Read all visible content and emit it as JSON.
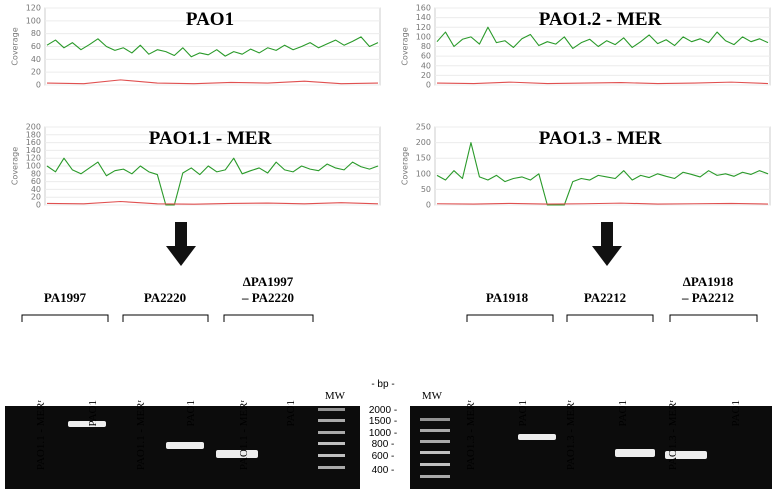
{
  "plots": [
    {
      "type": "line",
      "title": "PAO1",
      "ylabel": "Coverage",
      "ylim": [
        0,
        120
      ],
      "yticks": [
        0,
        20,
        40,
        60,
        80,
        100,
        120
      ],
      "grid": true,
      "series": [
        {
          "color": "#2a9a2a",
          "values": [
            62,
            70,
            58,
            66,
            55,
            63,
            72,
            60,
            54,
            58,
            50,
            62,
            48,
            55,
            52,
            46,
            58,
            44,
            50,
            47,
            55,
            45,
            52,
            48,
            56,
            50,
            58,
            54,
            62,
            55,
            60,
            66,
            58,
            64,
            70,
            62,
            68,
            75,
            60,
            66
          ]
        },
        {
          "color": "#e05050",
          "values": [
            3,
            2,
            8,
            3,
            2,
            4,
            3,
            6,
            2,
            3
          ]
        }
      ]
    },
    {
      "type": "line",
      "title": "PAO1.2 - MER",
      "ylabel": "Coverage",
      "ylim": [
        0,
        160
      ],
      "yticks": [
        0,
        20,
        40,
        60,
        80,
        100,
        120,
        140,
        160
      ],
      "grid": true,
      "series": [
        {
          "color": "#2a9a2a",
          "values": [
            90,
            110,
            80,
            95,
            100,
            85,
            120,
            88,
            92,
            78,
            96,
            105,
            82,
            90,
            85,
            100,
            76,
            88,
            95,
            80,
            92,
            84,
            98,
            78,
            90,
            104,
            86,
            94,
            82,
            100,
            90,
            96,
            88,
            110,
            92,
            84,
            100,
            90,
            96,
            88
          ]
        },
        {
          "color": "#e05050",
          "values": [
            4,
            3,
            6,
            3,
            4,
            5,
            3,
            4,
            6,
            3
          ]
        }
      ]
    },
    {
      "type": "line",
      "title": "PAO1.1 - MER",
      "ylabel": "Coverage",
      "ylim": [
        0,
        200
      ],
      "yticks": [
        0,
        20,
        40,
        60,
        80,
        100,
        120,
        140,
        160,
        180,
        200
      ],
      "grid": true,
      "series": [
        {
          "color": "#2a9a2a",
          "values": [
            100,
            85,
            120,
            90,
            80,
            95,
            110,
            75,
            88,
            92,
            80,
            100,
            85,
            78,
            0,
            0,
            82,
            95,
            78,
            100,
            85,
            90,
            120,
            80,
            88,
            95,
            82,
            110,
            90,
            85,
            100,
            92,
            88,
            105,
            95,
            90,
            110,
            98,
            92,
            100
          ]
        },
        {
          "color": "#e05050",
          "values": [
            4,
            3,
            9,
            3,
            2,
            4,
            5,
            3,
            6,
            3
          ]
        }
      ]
    },
    {
      "type": "line",
      "title": "PAO1.3 - MER",
      "ylabel": "Coverage",
      "ylim": [
        0,
        250
      ],
      "yticks": [
        0,
        50,
        100,
        150,
        200,
        250
      ],
      "grid": true,
      "series": [
        {
          "color": "#2a9a2a",
          "values": [
            95,
            80,
            110,
            85,
            200,
            90,
            80,
            95,
            75,
            85,
            90,
            80,
            100,
            0,
            0,
            0,
            75,
            85,
            80,
            95,
            90,
            85,
            110,
            80,
            95,
            88,
            100,
            92,
            85,
            105,
            98,
            90,
            110,
            95,
            100,
            92,
            105,
            98,
            110,
            100
          ]
        },
        {
          "color": "#e05050",
          "values": [
            4,
            3,
            5,
            3,
            4,
            6,
            3,
            4,
            5,
            3
          ]
        }
      ]
    }
  ],
  "gels": [
    {
      "genes": [
        [
          "PA1997"
        ],
        [
          "PA2220"
        ],
        [
          "ΔPA1997",
          "– PA2220"
        ]
      ],
      "lanes": [
        "PAO1.1 - MERʳ",
        "PAO1",
        "PAO1.1 - MERʳ",
        "PAO1",
        "PAO1.1 - MERʳ",
        "PAO1"
      ],
      "mw": "MW"
    },
    {
      "genes": [
        [
          "PA1918"
        ],
        [
          "PA2212"
        ],
        [
          "ΔPA1918",
          "– PA2212"
        ]
      ],
      "lanes": [
        "PAO1.3 - MERʳ",
        "PAO1",
        "PAO1.3 - MERʳ",
        "PAO1",
        "PAO1.3 - MERʳ",
        "PAO1"
      ],
      "mw": "MW"
    }
  ],
  "bp": {
    "label": "- bp -",
    "markers": [
      "2000 -",
      "1500 -",
      "1000 -",
      "800 -",
      "600 -",
      "400 -"
    ]
  }
}
